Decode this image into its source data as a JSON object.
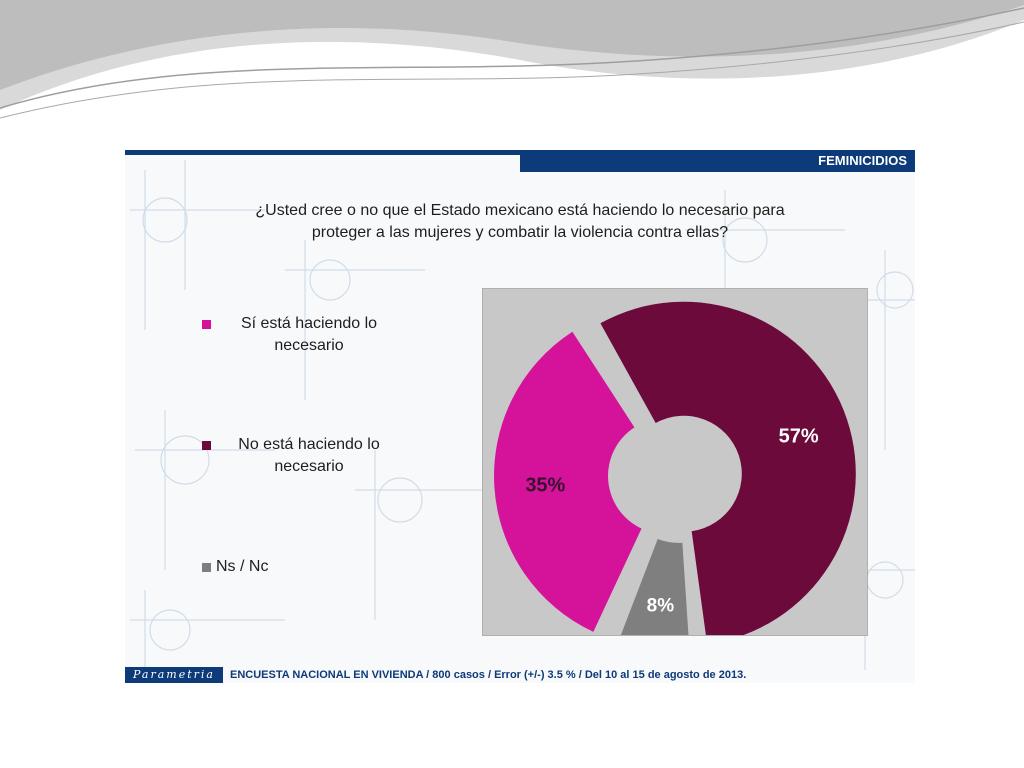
{
  "header": {
    "section_label": "FEMINICIDIOS"
  },
  "question": {
    "line1": "¿Usted cree o no que el Estado mexicano está haciendo lo necesario para",
    "line2": "proteger a las mujeres y combatir la violencia contra ellas?"
  },
  "legend": [
    {
      "line1": "Sí está haciendo lo",
      "line2": "necesario",
      "color": "#d4139a"
    },
    {
      "line1": "No está haciendo lo",
      "line2": "necesario",
      "color": "#6b0a3b"
    },
    {
      "line1": "Ns / Nc",
      "line2": "",
      "color": "#7f7f7f"
    }
  ],
  "chart_data": {
    "type": "pie",
    "style": "doughnut, exploded slices",
    "categories": [
      "Sí está haciendo lo necesario",
      "No está haciendo lo necesario",
      "Ns / Nc"
    ],
    "values": [
      35,
      57,
      8
    ],
    "labels": [
      "35%",
      "57%",
      "8%"
    ],
    "colors": [
      "#d4139a",
      "#6b0a3b",
      "#7f7f7f"
    ],
    "background": "#c8c8c8"
  },
  "footer": {
    "logo_text": "Parametria",
    "survey_text": "ENCUESTA NACIONAL EN VIVIENDA / 800 casos / Error (+/-) 3.5 % / Del 10 al 15 de agosto de 2013."
  }
}
